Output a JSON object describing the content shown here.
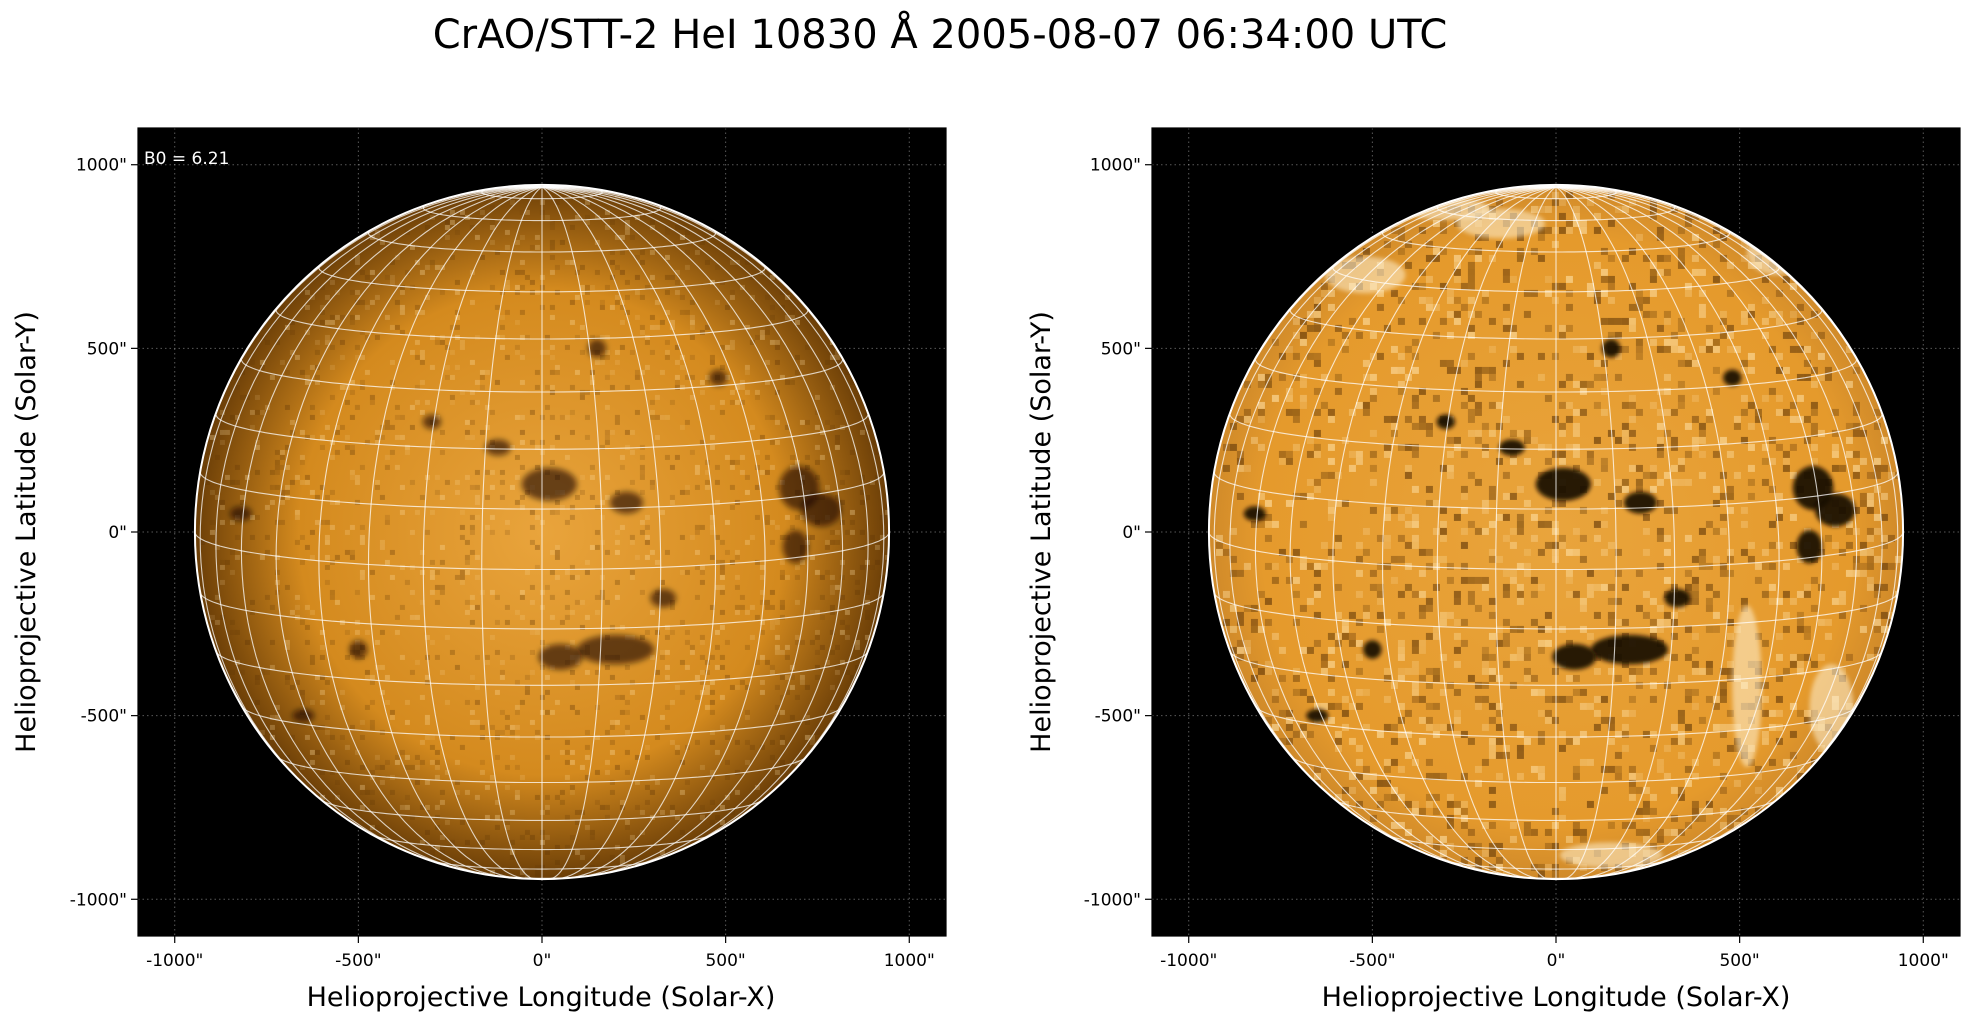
{
  "figure": {
    "title": "CrAO/STT-2 HeI 10830 Å 2005-08-07 06:34:00 UTC"
  },
  "colors": {
    "background": "#000000",
    "disk_light": "#e9a43c",
    "disk_dark": "#6a3d08",
    "limb": "#ffffff"
  },
  "panels": [
    {
      "id": "left",
      "xlabel": "Helioprojective Longitude (Solar-X)",
      "ylabel": "Helioprojective Latitude (Solar-Y)",
      "annotation": "B0 = 6.21",
      "xticks": [
        "-1000\"",
        "-500\"",
        "0\"",
        "500\"",
        "1000\""
      ],
      "yticks": [
        "1000\"",
        "500\"",
        "0\"",
        "-500\"",
        "-1000\""
      ]
    },
    {
      "id": "right",
      "xlabel": "Helioprojective Longitude (Solar-X)",
      "ylabel": "Helioprojective Latitude (Solar-Y)",
      "annotation": "",
      "xticks": [
        "-1000\"",
        "-500\"",
        "0\"",
        "500\"",
        "1000\""
      ],
      "yticks": [
        "1000\"",
        "500\"",
        "0\"",
        "-500\"",
        "-1000\""
      ]
    }
  ],
  "chart_data": {
    "type": "image",
    "xlim": [
      -1100,
      1100
    ],
    "ylim": [
      -1100,
      1100
    ],
    "tick_values": [
      -1000,
      -500,
      0,
      500,
      1000
    ],
    "solar_radius_arcsec": 945,
    "b0_deg": 6.21,
    "grid": true,
    "meridian_spacing_deg": 10,
    "parallel_spacing_deg": 10
  }
}
